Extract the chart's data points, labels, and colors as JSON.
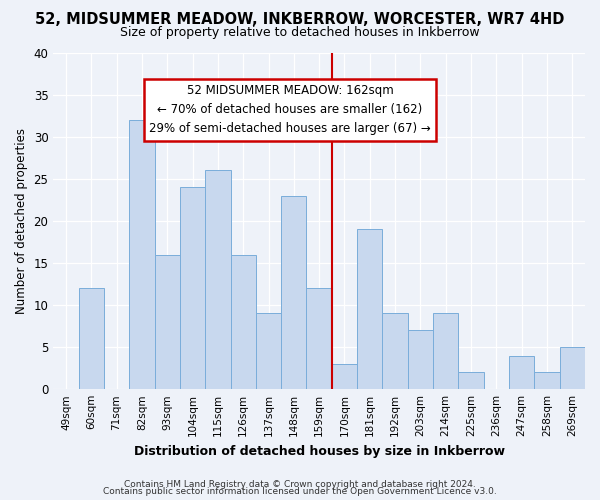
{
  "title_line1": "52, MIDSUMMER MEADOW, INKBERROW, WORCESTER, WR7 4HD",
  "title_line2": "Size of property relative to detached houses in Inkberrow",
  "xlabel": "Distribution of detached houses by size in Inkberrow",
  "ylabel": "Number of detached properties",
  "categories": [
    "49sqm",
    "60sqm",
    "71sqm",
    "82sqm",
    "93sqm",
    "104sqm",
    "115sqm",
    "126sqm",
    "137sqm",
    "148sqm",
    "159sqm",
    "170sqm",
    "181sqm",
    "192sqm",
    "203sqm",
    "214sqm",
    "225sqm",
    "236sqm",
    "247sqm",
    "258sqm",
    "269sqm"
  ],
  "values": [
    0,
    12,
    0,
    32,
    16,
    24,
    26,
    16,
    9,
    23,
    12,
    3,
    19,
    9,
    7,
    9,
    2,
    0,
    4,
    2,
    5
  ],
  "bar_color": "#c8d8ee",
  "bar_edge_color": "#7aadda",
  "annotation_text_line1": "52 MIDSUMMER MEADOW: 162sqm",
  "annotation_text_line2": "← 70% of detached houses are smaller (162)",
  "annotation_text_line3": "29% of semi-detached houses are larger (67) →",
  "annotation_box_color": "#ffffff",
  "annotation_box_edge_color": "#cc0000",
  "highlight_line_color": "#cc0000",
  "ylim": [
    0,
    40
  ],
  "yticks": [
    0,
    5,
    10,
    15,
    20,
    25,
    30,
    35,
    40
  ],
  "footer_line1": "Contains HM Land Registry data © Crown copyright and database right 2024.",
  "footer_line2": "Contains public sector information licensed under the Open Government Licence v3.0.",
  "bg_color": "#eef2f9"
}
